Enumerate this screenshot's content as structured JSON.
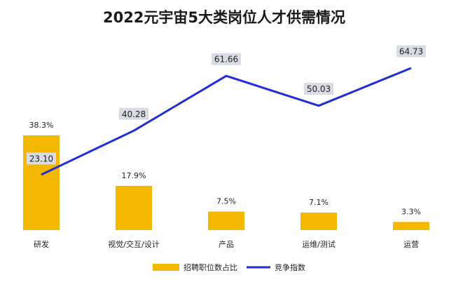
{
  "chart_data": {
    "type": "bar",
    "title": "2022元宇宙5大类岗位人才供需情况",
    "categories": [
      "研发",
      "视觉/交互/设计",
      "产品",
      "运维/测试",
      "运营"
    ],
    "series": [
      {
        "name": "招聘职位数占比",
        "kind": "bar",
        "values": [
          38.3,
          17.9,
          7.5,
          7.1,
          3.3
        ],
        "labels": [
          "38.3%",
          "17.9%",
          "7.5%",
          "7.1%",
          "3.3%"
        ],
        "color": "#F5B800"
      },
      {
        "name": "竞争指数",
        "kind": "line",
        "values": [
          23.1,
          40.28,
          61.66,
          50.03,
          64.73
        ],
        "labels": [
          "23.10",
          "40.28",
          "61.66",
          "50.03",
          "64.73"
        ],
        "color": "#1F2FD6"
      }
    ],
    "grid": false,
    "legend_position": "bottom"
  }
}
